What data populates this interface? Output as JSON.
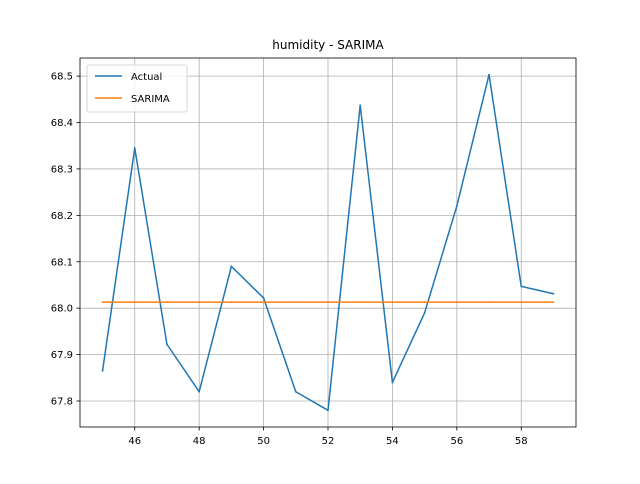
{
  "chart_data": {
    "type": "line",
    "title": "humidity - SARIMA",
    "xlabel": "",
    "ylabel": "",
    "x": [
      45,
      46,
      47,
      48,
      49,
      50,
      51,
      52,
      53,
      54,
      55,
      56,
      57,
      58,
      59
    ],
    "series": [
      {
        "name": "Actual",
        "color": "#1f77b4",
        "values": [
          67.865,
          68.345,
          67.922,
          67.82,
          68.09,
          68.022,
          67.82,
          67.78,
          68.437,
          67.84,
          67.99,
          68.22,
          68.503,
          68.047,
          68.031
        ]
      },
      {
        "name": "SARIMA",
        "color": "#ff7f0e",
        "values": [
          68.013,
          68.013,
          68.013,
          68.013,
          68.013,
          68.013,
          68.013,
          68.013,
          68.013,
          68.013,
          68.013,
          68.013,
          68.013,
          68.013,
          68.013
        ]
      }
    ],
    "xlim": [
      44.3,
      59.7
    ],
    "ylim": [
      67.744,
      68.539
    ],
    "xticks": [
      46,
      48,
      50,
      52,
      54,
      56,
      58
    ],
    "xtick_labels": [
      "46",
      "48",
      "50",
      "52",
      "54",
      "56",
      "58"
    ],
    "yticks": [
      67.8,
      67.9,
      68.0,
      68.1,
      68.2,
      68.3,
      68.4,
      68.5
    ],
    "ytick_labels": [
      "67.8",
      "67.9",
      "68.0",
      "68.1",
      "68.2",
      "68.3",
      "68.4",
      "68.5"
    ],
    "grid": true,
    "legend_position": "upper-left"
  }
}
